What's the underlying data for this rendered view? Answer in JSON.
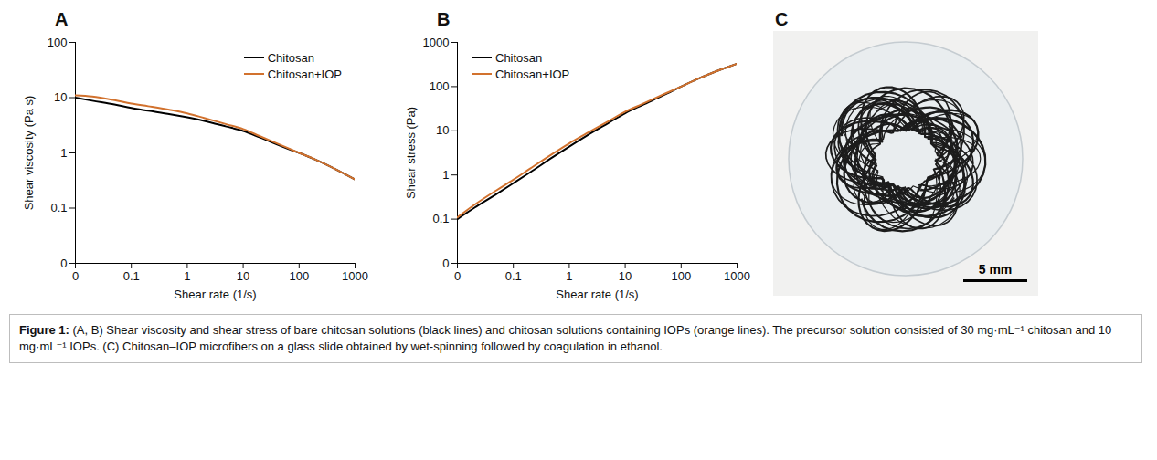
{
  "chart_data": [
    {
      "type": "line",
      "panel": "A",
      "log": true,
      "grid": false,
      "legend": "top-right",
      "x_label": "Shear rate (1/s)",
      "y_label": "Shear viscosity (Pa s)",
      "x": [
        0.01,
        0.02,
        0.05,
        0.1,
        0.2,
        0.5,
        1,
        2,
        5,
        10,
        20,
        50,
        100,
        200,
        500,
        1000
      ],
      "series": [
        {
          "name": "Chitosan",
          "color": "#000000",
          "values": [
            10,
            8.8,
            7.5,
            6.5,
            5.8,
            5,
            4.4,
            3.8,
            3,
            2.5,
            1.9,
            1.3,
            1.0,
            0.75,
            0.48,
            0.33
          ]
        },
        {
          "name": "Chitosan+IOP",
          "color": "#d2722e",
          "values": [
            11,
            10.5,
            9,
            7.8,
            7,
            6,
            5.2,
            4.3,
            3.3,
            2.7,
            2,
            1.35,
            1.0,
            0.75,
            0.48,
            0.33
          ]
        }
      ],
      "xlim": [
        0.01,
        1000
      ],
      "xticks": [
        {
          "value": 0.01,
          "label": "0"
        },
        0.1,
        1,
        10,
        100,
        1000
      ],
      "ylim": [
        0.01,
        100
      ],
      "yticks": [
        {
          "value": 0.01,
          "label": "0"
        },
        0.1,
        1,
        10,
        100
      ]
    },
    {
      "type": "line",
      "panel": "B",
      "log": true,
      "grid": false,
      "legend": "top-left",
      "x_label": "Shear rate (1/s)",
      "y_label": "Shear stress (Pa)",
      "x": [
        0.01,
        0.02,
        0.05,
        0.1,
        0.2,
        0.5,
        1,
        2,
        5,
        10,
        20,
        50,
        100,
        200,
        500,
        1000
      ],
      "series": [
        {
          "name": "Chitosan",
          "color": "#000000",
          "values": [
            0.1,
            0.18,
            0.37,
            0.65,
            1.15,
            2.5,
            4.4,
            7.6,
            15,
            25,
            38,
            65,
            100,
            150,
            240,
            330
          ]
        },
        {
          "name": "Chitosan+IOP",
          "color": "#d2722e",
          "values": [
            0.11,
            0.21,
            0.45,
            0.78,
            1.4,
            3,
            5.2,
            8.6,
            16.5,
            27,
            40,
            68,
            100,
            150,
            240,
            330
          ]
        }
      ],
      "xlim": [
        0.01,
        1000
      ],
      "xticks": [
        {
          "value": 0.01,
          "label": "0"
        },
        0.1,
        1,
        10,
        100,
        1000
      ],
      "ylim": [
        0.01,
        1000
      ],
      "yticks": [
        {
          "value": 0.01,
          "label": "0"
        },
        0.1,
        1,
        10,
        100,
        1000
      ]
    },
    {
      "type": "image",
      "panel": "C",
      "annotations": [
        "5 mm"
      ]
    }
  ],
  "caption_label": "Figure 1:",
  "caption": "(A, B) Shear viscosity and shear stress of bare chitosan solutions (black lines) and chitosan solutions containing IOPs (orange lines). The precursor solution consisted of 30 mg·mL⁻¹ chitosan and 10 mg·mL⁻¹ IOPs. (C) Chitosan–IOP microfibers on a glass slide obtained by wet-spinning followed by coagulation in ethanol."
}
